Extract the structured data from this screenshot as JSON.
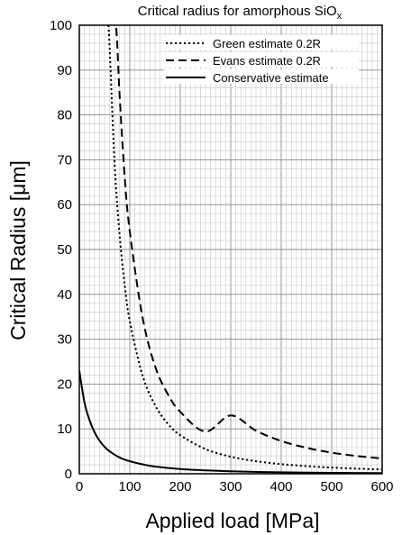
{
  "chart_data": {
    "type": "line",
    "title": "Critical radius for amorphous SiO",
    "title_subscript": "x",
    "xlabel": "Applied load [MPa]",
    "ylabel": "Critical Radius [μm]",
    "xlim": [
      0,
      600
    ],
    "ylim": [
      0,
      100
    ],
    "xticks": [
      0,
      100,
      200,
      300,
      400,
      500,
      600
    ],
    "yticks": [
      0,
      10,
      20,
      30,
      40,
      50,
      60,
      70,
      80,
      90,
      100
    ],
    "grid": true,
    "legend_position": "top-right",
    "series": [
      {
        "name": "Green estimate 0.2R",
        "style": "dotted",
        "x": [
          55,
          60,
          70,
          80,
          90,
          100,
          125,
          150,
          175,
          200,
          250,
          300,
          350,
          400,
          450,
          500,
          550,
          600
        ],
        "y": [
          105,
          95,
          69,
          53,
          42,
          34,
          22,
          15.3,
          11.2,
          8.6,
          5.5,
          3.8,
          2.8,
          2.15,
          1.7,
          1.38,
          1.14,
          0.96
        ]
      },
      {
        "name": "Evans estimate 0.2R",
        "style": "dashed",
        "x": [
          70,
          75,
          80,
          90,
          100,
          125,
          150,
          175,
          200,
          250,
          300,
          350,
          400,
          450,
          500,
          550,
          600
        ],
        "y": [
          105,
          96,
          84,
          66,
          54,
          35,
          24,
          17.8,
          13.8,
          9.4,
          13,
          9.6,
          7.3,
          5.8,
          4.7,
          3.95,
          3.4
        ]
      },
      {
        "name": "Conservative estimate",
        "style": "solid",
        "x": [
          0,
          10,
          20,
          30,
          40,
          50,
          60,
          80,
          100,
          125,
          150,
          200,
          250,
          300,
          400,
          500,
          600
        ],
        "y": [
          23,
          16,
          12,
          9.3,
          7.4,
          6.0,
          5.0,
          3.6,
          2.8,
          2.1,
          1.6,
          1.05,
          0.75,
          0.55,
          0.32,
          0.21,
          0.15
        ]
      }
    ]
  }
}
